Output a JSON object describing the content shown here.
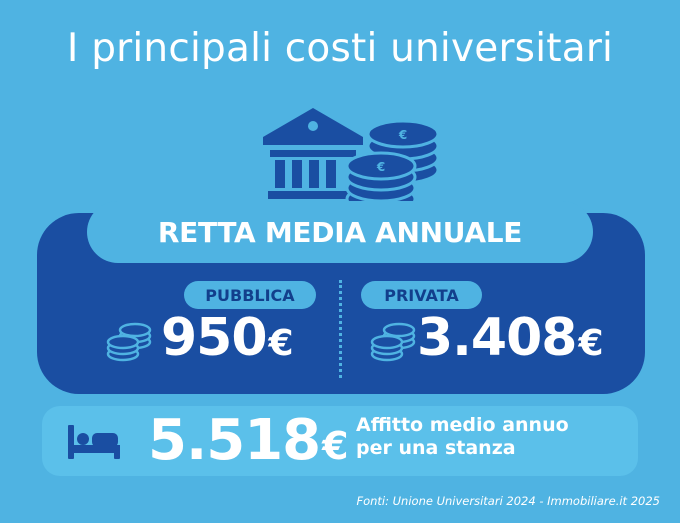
{
  "title": "I principali costi universitari",
  "header_label": "RETTA MEDIA ANNUALE",
  "public": {
    "label": "PUBBLICA",
    "amount": "950",
    "currency": "€"
  },
  "private": {
    "label": "PRIVATA",
    "amount": "3.408",
    "currency": "€"
  },
  "rent": {
    "amount": "5.518",
    "currency": "€",
    "description_line1": "Affitto medio annuo",
    "description_line2": "per una stanza"
  },
  "source": "Fonti: Unione Universitari 2024 - Immobiliare.it 2025",
  "icons": [
    "bank-icon",
    "coins-icon",
    "bed-icon"
  ],
  "colors": {
    "background": "#4fb3e2",
    "panel": "#1a4ea2",
    "accent": "#5bc0ea",
    "white": "#ffffff"
  }
}
